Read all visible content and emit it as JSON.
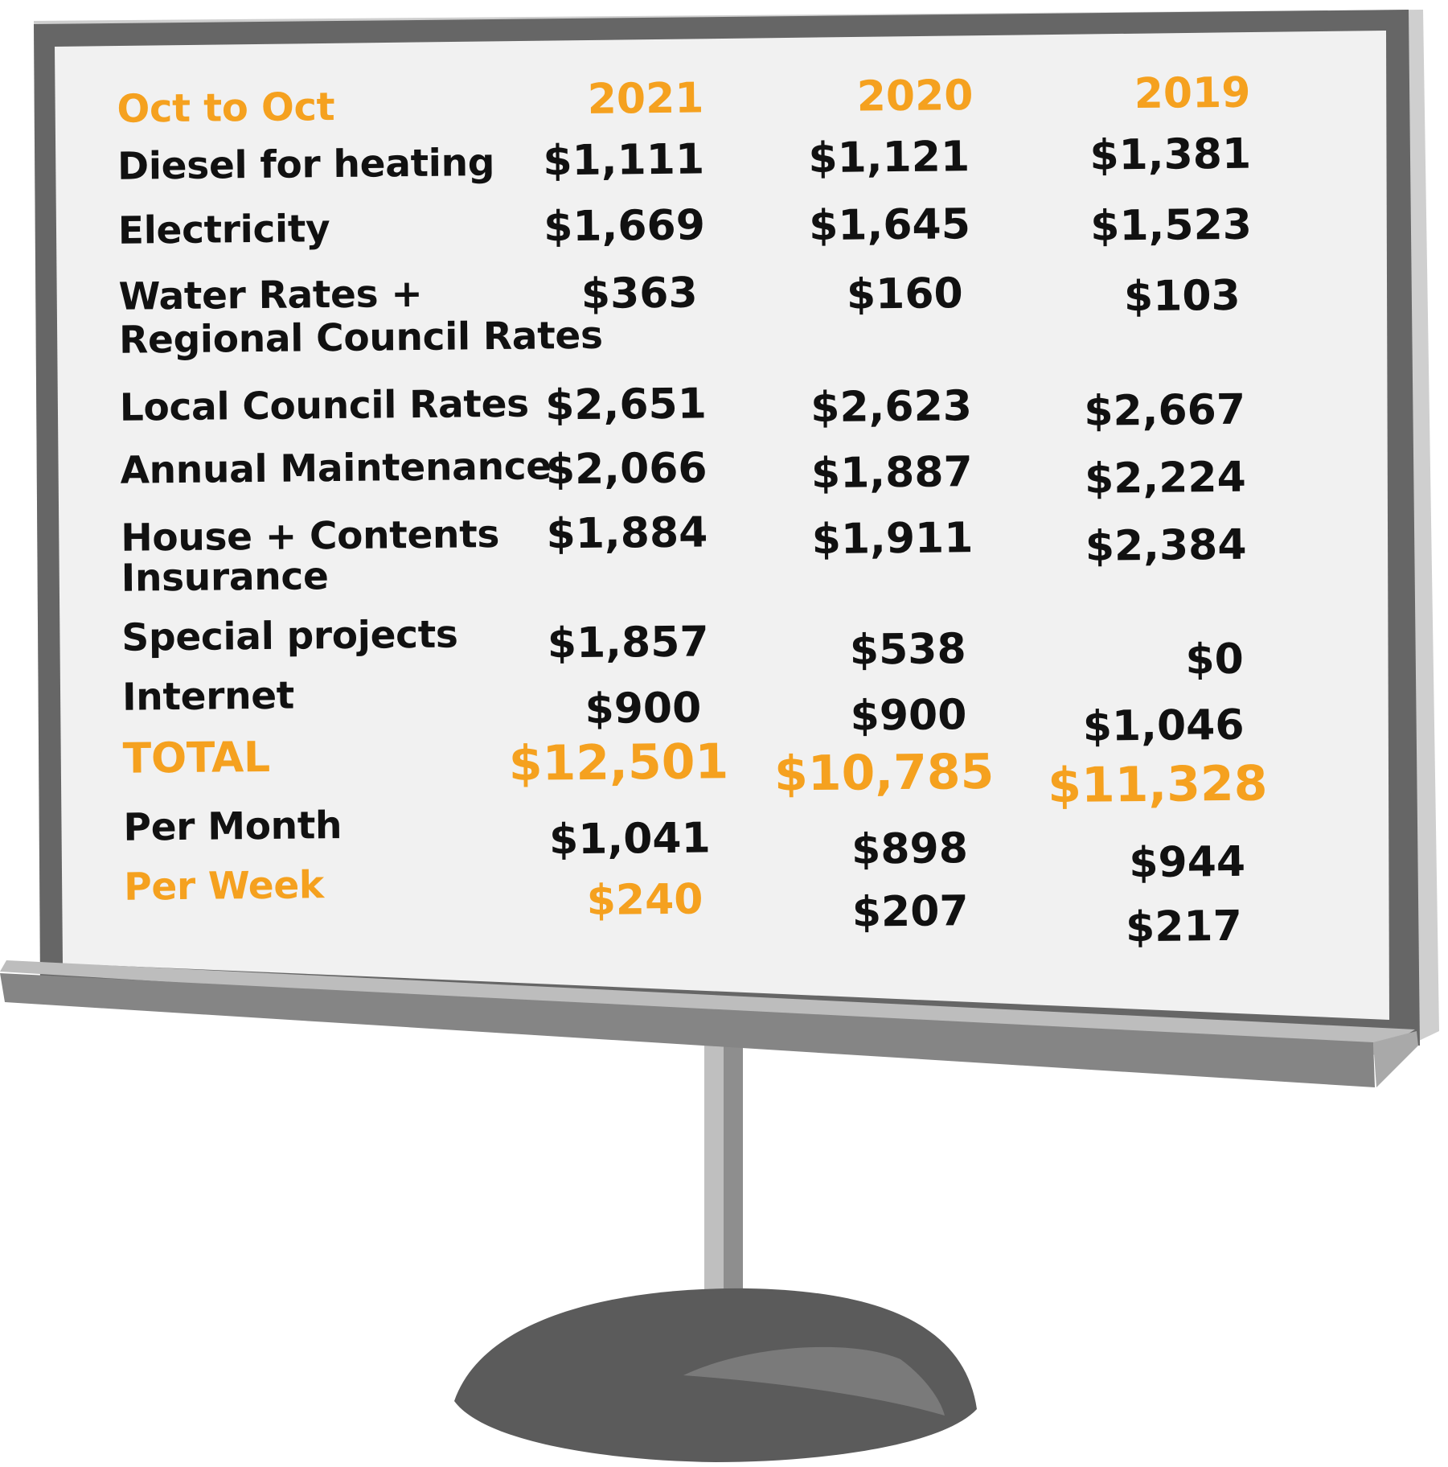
{
  "colors": {
    "accent": "#f5a11f",
    "text": "#111111",
    "screen": "#f1f1f1",
    "frame": "#6b6b6b",
    "stand": "#5c5c5c"
  },
  "table": {
    "header_label": "Oct to Oct",
    "years": [
      "2021",
      "2020",
      "2019"
    ],
    "rows": [
      {
        "label": "Diesel for heating",
        "values": [
          "$1,111",
          "$1,121",
          "$1,381"
        ]
      },
      {
        "label": "Electricity",
        "values": [
          "$1,669",
          "$1,645",
          "$1,523"
        ]
      },
      {
        "label": "Water Rates +",
        "label2": "Regional Council Rates",
        "values": [
          "$363",
          "$160",
          "$103"
        ]
      },
      {
        "label": "Local Council Rates",
        "values": [
          "$2,651",
          "$2,623",
          "$2,667"
        ]
      },
      {
        "label": "Annual Maintenance",
        "values": [
          "$2,066",
          "$1,887",
          "$2,224"
        ]
      },
      {
        "label": "House + Contents",
        "label2": "Insurance",
        "values": [
          "$1,884",
          "$1,911",
          "$2,384"
        ]
      },
      {
        "label": "Special projects",
        "values": [
          "$1,857",
          "$538",
          "$0"
        ]
      },
      {
        "label": "Internet",
        "values": [
          "$900",
          "$900",
          "$1,046"
        ]
      }
    ],
    "total": {
      "label": "TOTAL",
      "values": [
        "$12,501",
        "$10,785",
        "$11,328"
      ]
    },
    "per_month": {
      "label": "Per Month",
      "values": [
        "$1,041",
        "$898",
        "$944"
      ]
    },
    "per_week": {
      "label": "Per Week",
      "values": [
        "$240",
        "$207",
        "$217"
      ]
    }
  }
}
